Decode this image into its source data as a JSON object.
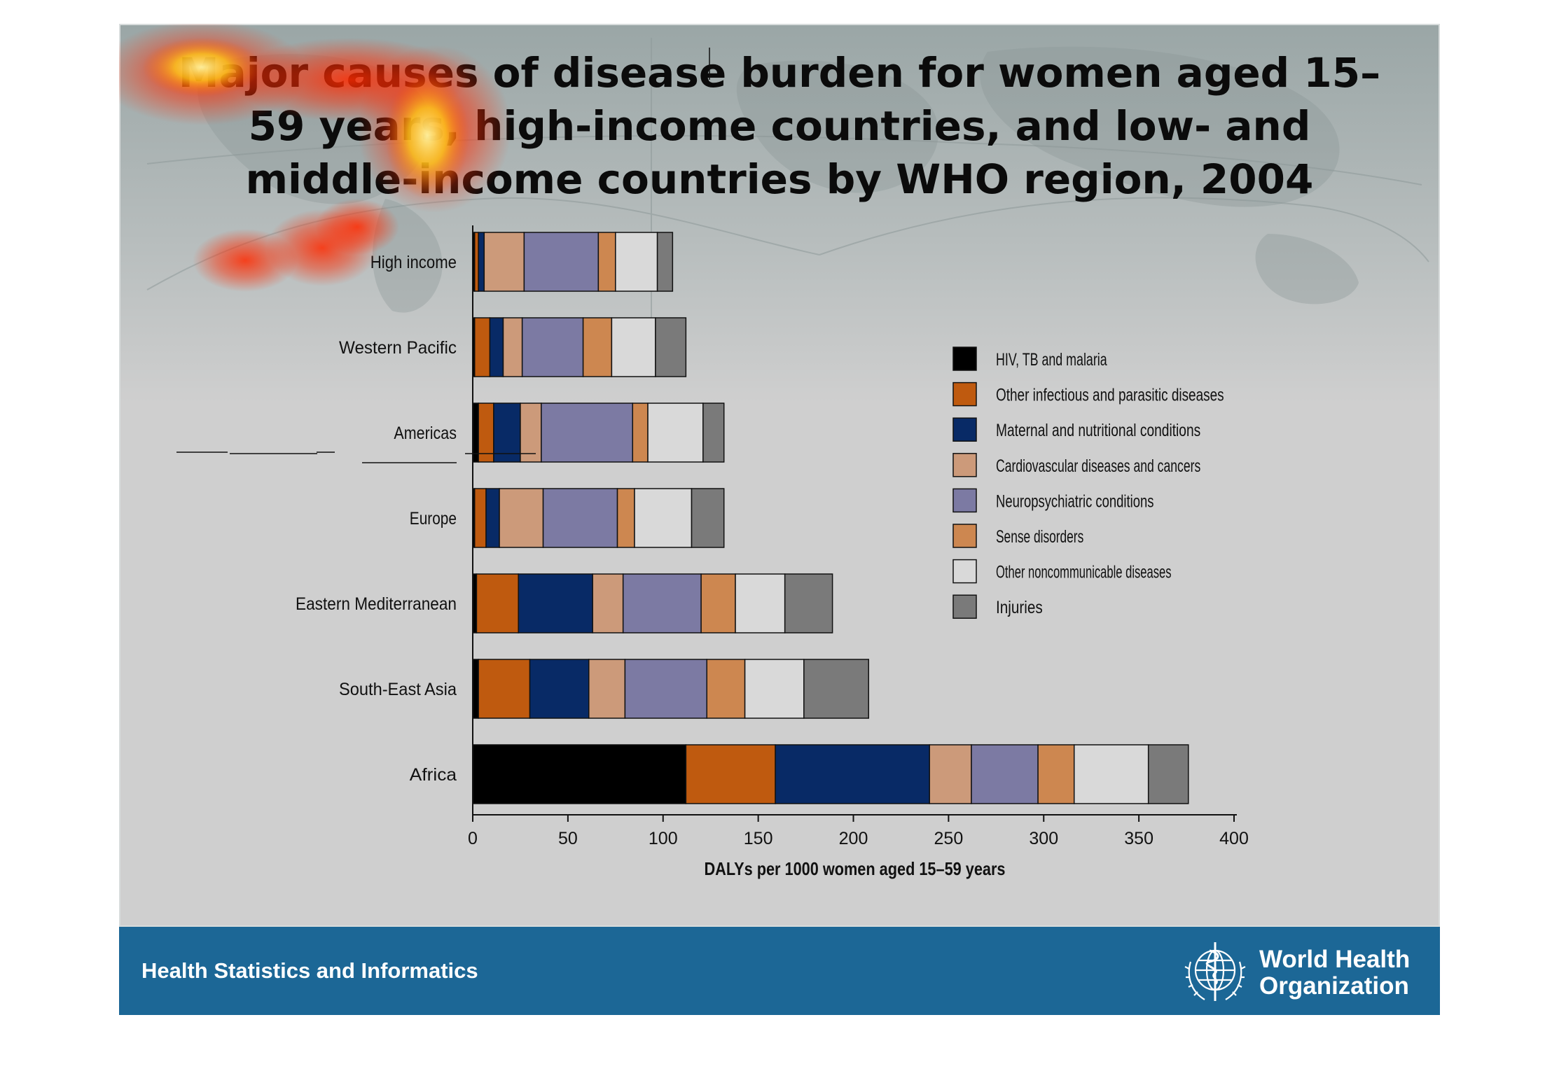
{
  "slide": {
    "title": "Major causes of disease burden for women aged 15–59 years, high-income countries, and low- and middle-income countries by WHO region, 2004",
    "footer_text": "Health Statistics and Informatics",
    "logo_line1": "World Health",
    "logo_line2": "Organization",
    "icons": [
      "who-emblem-icon"
    ]
  },
  "colors": {
    "slide_background": "#cfcfcf",
    "footer_bar": "#1c6796",
    "attention_heatmap": "#ff2a00"
  },
  "chart_data": {
    "type": "bar",
    "orientation": "horizontal",
    "stacked": true,
    "title": "",
    "xlabel": "DALYs per 1000 women aged 15–59 years",
    "ylabel": "",
    "xlim": [
      0,
      400
    ],
    "xticks": [
      0,
      50,
      100,
      150,
      200,
      250,
      300,
      350,
      400
    ],
    "grid": false,
    "legend_position": "right",
    "categories": [
      "High income",
      "Western Pacific",
      "Americas",
      "Europe",
      "Eastern Mediterranean",
      "South-East Asia",
      "Africa"
    ],
    "series": [
      {
        "name": "HIV, TB and malaria",
        "color": "#000000",
        "values": [
          1,
          1,
          3,
          1,
          2,
          3,
          112
        ]
      },
      {
        "name": "Other infectious and parasitic diseases",
        "color": "#bf5a0f",
        "values": [
          2,
          8,
          8,
          6,
          22,
          27,
          47
        ]
      },
      {
        "name": "Maternal and nutritional conditions",
        "color": "#082a66",
        "values": [
          3,
          7,
          14,
          7,
          39,
          31,
          81
        ]
      },
      {
        "name": "Cardiovascular diseases and cancers",
        "color": "#cc9a7a",
        "values": [
          21,
          10,
          11,
          23,
          16,
          19,
          22
        ]
      },
      {
        "name": "Neuropsychiatric conditions",
        "color": "#7c7aa3",
        "values": [
          39,
          32,
          48,
          39,
          41,
          43,
          35
        ]
      },
      {
        "name": "Sense disorders",
        "color": "#cd8750",
        "values": [
          9,
          15,
          8,
          9,
          18,
          20,
          19
        ]
      },
      {
        "name": "Other noncommunicable diseases",
        "color": "#d9d9d9",
        "values": [
          22,
          23,
          29,
          30,
          26,
          31,
          39
        ]
      },
      {
        "name": "Injuries",
        "color": "#7a7a7a",
        "values": [
          8,
          16,
          11,
          17,
          25,
          34,
          21
        ]
      }
    ]
  }
}
